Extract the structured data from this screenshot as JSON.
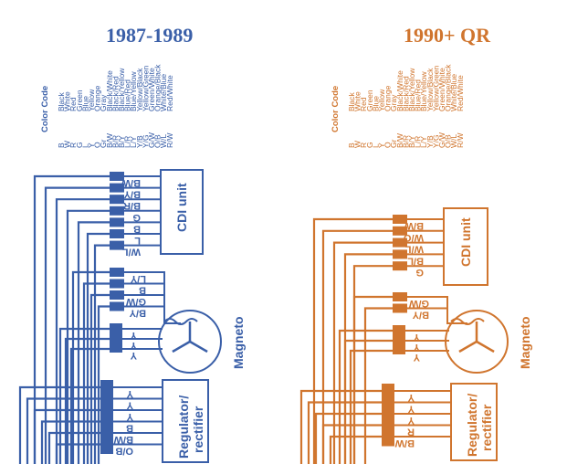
{
  "panels": {
    "left": {
      "title": "1987-1989",
      "color": "#3a5fa8",
      "color_code_heading": "Color Code",
      "color_codes": [
        [
          "B",
          "Black"
        ],
        [
          "W",
          "White"
        ],
        [
          "R",
          "Red"
        ],
        [
          "G",
          "Green"
        ],
        [
          "L",
          "Blue"
        ],
        [
          "Y",
          "Yellow"
        ],
        [
          "O",
          "Orange"
        ],
        [
          "Gr",
          "Gray"
        ],
        [
          "B/W",
          "Black/White"
        ],
        [
          "B/R",
          "Black/Red"
        ],
        [
          "B/Y",
          "Black/Yellow"
        ],
        [
          "L/R",
          "Blue/Red"
        ],
        [
          "L/Y",
          "Blue/Yellow"
        ],
        [
          "Y/B",
          "Yellow/Black"
        ],
        [
          "Y/G",
          "Yellow/Green"
        ],
        [
          "G/W",
          "Green/White"
        ],
        [
          "O/B",
          "Orange/Black"
        ],
        [
          "W/L",
          "White/Blue"
        ],
        [
          "R/W",
          "Red/White"
        ]
      ],
      "cdi_label": "CDI unit",
      "cdi_wires": [
        "B/W",
        "B/Y",
        "B/R",
        "G",
        "B",
        "L",
        "W/L"
      ],
      "magneto_label": "Magneto",
      "magneto_pickup_wires": [
        "L/Y",
        "B",
        "G/W",
        "B/Y"
      ],
      "magneto_stator_wires": [
        "Y",
        "Y",
        "Y"
      ],
      "regulator_label": "Regulator/ rectifier",
      "regulator_wires": [
        "Y",
        "Y",
        "Y",
        "B",
        "B/W",
        "O/B"
      ]
    },
    "right": {
      "title": "1990+ QR",
      "color": "#d0752e",
      "color_code_heading": "Color Code",
      "color_codes": [
        [
          "B",
          "Black"
        ],
        [
          "W",
          "White"
        ],
        [
          "R",
          "Red"
        ],
        [
          "G",
          "Green"
        ],
        [
          "L",
          "Blue"
        ],
        [
          "Y",
          "Yellow"
        ],
        [
          "O",
          "Orange"
        ],
        [
          "Gr",
          "Gray"
        ],
        [
          "B/W",
          "Black/White"
        ],
        [
          "B/R",
          "Black/Red"
        ],
        [
          "B/Y",
          "Black/Yellow"
        ],
        [
          "L/R",
          "Blue/Red"
        ],
        [
          "L/Y",
          "Blue/Yellow"
        ],
        [
          "Y/B",
          "Yellow/Black"
        ],
        [
          "Y/G",
          "Yellow/Green"
        ],
        [
          "G/W",
          "Green/White"
        ],
        [
          "O/B",
          "Orange/Black"
        ],
        [
          "W/L",
          "White/Blue"
        ],
        [
          "R/W",
          "Red/White"
        ]
      ],
      "cdi_label": "CDI unit",
      "cdi_wires": [
        "B/W",
        "W/O",
        "W/L",
        "B/L",
        "G"
      ],
      "magneto_label": "Magneto",
      "magneto_pickup_wires": [
        "G/W",
        "B/Y"
      ],
      "magneto_stator_wires": [
        "Y",
        "Y",
        "Y"
      ],
      "regulator_label": "Regulator/ rectifier",
      "regulator_wires": [
        "Y",
        "Y",
        "Y",
        "R",
        "B/W"
      ]
    }
  }
}
